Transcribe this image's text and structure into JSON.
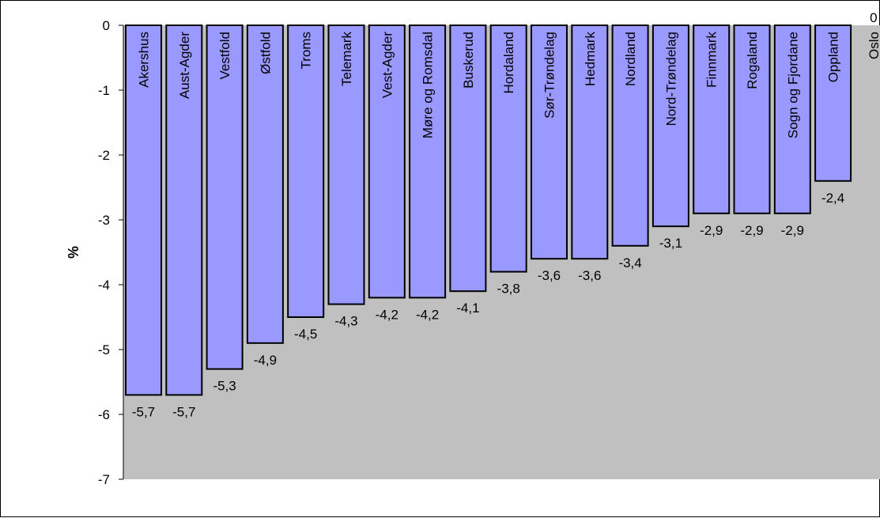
{
  "chart_data": {
    "type": "bar",
    "title": "",
    "xlabel": "",
    "ylabel": "%",
    "ylim": [
      -7,
      0
    ],
    "yticks": [
      0,
      -1,
      -2,
      -3,
      -4,
      -5,
      -6,
      -7
    ],
    "ytick_labels": [
      "0",
      "-1",
      "-2",
      "-3",
      "-4",
      "-5",
      "-6",
      "-7"
    ],
    "categories": [
      "Akershus",
      "Aust-Agder",
      "Vestfold",
      "Østfold",
      "Troms",
      "Telemark",
      "Vest-Agder",
      "Møre og Romsdal",
      "Buskerud",
      "Hordaland",
      "Sør-Trøndelag",
      "Hedmark",
      "Nordland",
      "Nord-Trøndelag",
      "Finnmark",
      "Rogaland",
      "Sogn og Fjordane",
      "Oppland",
      "Oslo"
    ],
    "values": [
      -5.7,
      -5.7,
      -5.3,
      -4.9,
      -4.5,
      -4.3,
      -4.2,
      -4.2,
      -4.1,
      -3.8,
      -3.6,
      -3.6,
      -3.4,
      -3.1,
      -2.9,
      -2.9,
      -2.9,
      -2.4,
      0
    ],
    "value_labels": [
      "-5,7",
      "-5,7",
      "-5,3",
      "-4,9",
      "-4,5",
      "-4,3",
      "-4,2",
      "-4,2",
      "-4,1",
      "-3,8",
      "-3,6",
      "-3,6",
      "-3,4",
      "-3,1",
      "-2,9",
      "-2,9",
      "-2,9",
      "-2,4",
      "0"
    ],
    "grid": false,
    "legend": "none",
    "colors": {
      "bar_fill": "#9999ff",
      "bar_stroke": "#000000",
      "plot_background": "#c0c0c0",
      "chart_background": "#ffffff"
    }
  }
}
